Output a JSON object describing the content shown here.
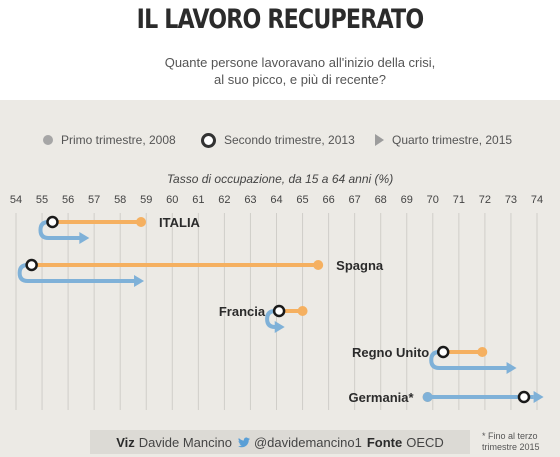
{
  "header": {
    "title": "IL LAVORO RECUPERATO",
    "subtitle_line1": "Quante persone lavoravano all'inizio della crisi,",
    "subtitle_line2": "al suo picco, e più di recente?"
  },
  "colors": {
    "orange": "#f5b060",
    "blue": "#7fb1d8",
    "ring_stroke": "#1a1a1a",
    "grey_dot": "#a6a6a6",
    "grid": "#d0cec9"
  },
  "legend": [
    {
      "marker": "dot-icon",
      "label": "Primo trimestre, 2008"
    },
    {
      "marker": "ring-icon",
      "label": "Secondo trimestre, 2013"
    },
    {
      "marker": "triangle-icon",
      "label": "Quarto trimestre, 2015"
    }
  ],
  "chart_data": {
    "type": "dot-arrow",
    "xlabel": "Tasso di occupazione, da 15 a 64 anni (%)",
    "xlim": [
      54,
      74
    ],
    "x_ticks": [
      54,
      55,
      56,
      57,
      58,
      59,
      60,
      61,
      62,
      63,
      64,
      65,
      66,
      67,
      68,
      69,
      70,
      71,
      72,
      73,
      74
    ],
    "grid": true,
    "series": [
      "Primo trimestre, 2008",
      "Secondo trimestre, 2013",
      "Quarto trimestre, 2015"
    ],
    "rows": [
      {
        "country": "ITALIA",
        "q1_2008": 58.8,
        "q2_2013": 55.4,
        "q4_2015": 56.7,
        "bold": true
      },
      {
        "country": "Spagna",
        "q1_2008": 65.6,
        "q2_2013": 54.6,
        "q4_2015": 58.8,
        "bold": true
      },
      {
        "country": "Francia",
        "q1_2008": 65.0,
        "q2_2013": 64.1,
        "q4_2015": 64.2,
        "bold": true
      },
      {
        "country": "Regno Unito",
        "q1_2008": 71.9,
        "q2_2013": 70.4,
        "q4_2015": 73.1,
        "bold": true
      },
      {
        "country": "Germania*",
        "q1_2008": 69.8,
        "q2_2013": 73.5,
        "q4_2015": 74.1,
        "bold": true
      }
    ]
  },
  "footer": {
    "viz_label": "Viz",
    "viz_author": "Davide Mancino",
    "twitter_handle": "@davidemancino1",
    "source_label": "Fonte",
    "source": "OECD"
  },
  "footnote": {
    "line1": "* Fino al terzo",
    "line2": "trimestre 2015"
  }
}
